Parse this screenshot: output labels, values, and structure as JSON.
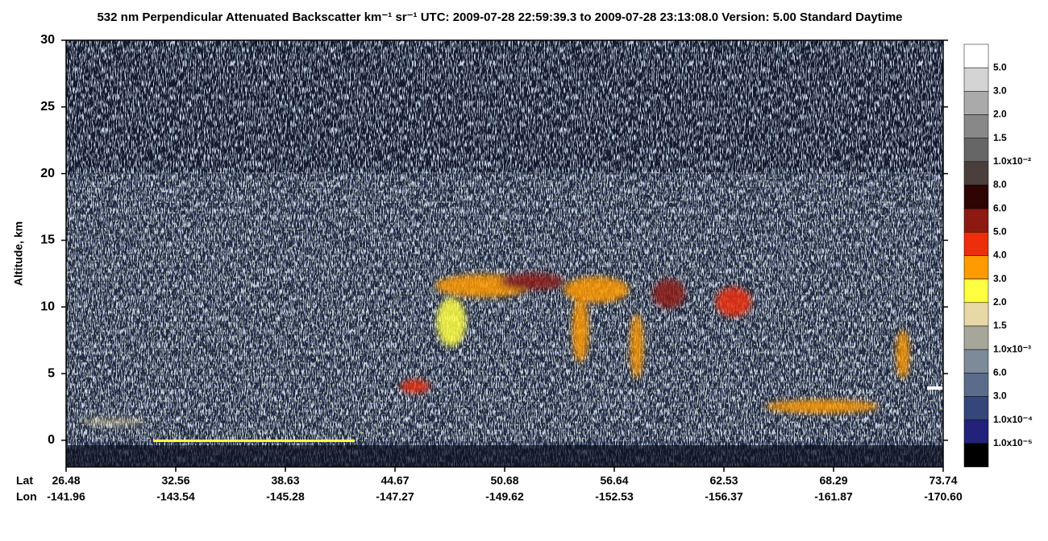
{
  "chart_data": {
    "type": "heatmap",
    "title": "532 nm Perpendicular Attenuated Backscatter km⁻¹ sr⁻¹  UTC: 2009-07-28 22:59:39.3 to 2009-07-28 23:13:08.0  Version: 5.00 Standard Daytime",
    "y_label": "Altitude, km",
    "ylim": [
      -2,
      30
    ],
    "yticks": [
      0,
      5,
      10,
      15,
      20,
      25,
      30
    ],
    "x_rows": [
      {
        "name": "Lat",
        "labels": [
          "26.48",
          "32.56",
          "38.63",
          "44.67",
          "50.68",
          "56.64",
          "62.53",
          "68.29",
          "73.74"
        ]
      },
      {
        "name": "Lon",
        "labels": [
          "-141.96",
          "-143.54",
          "-145.28",
          "-147.27",
          "-149.62",
          "-152.53",
          "-156.37",
          "-161.87",
          "-170.60"
        ]
      }
    ],
    "colorbar": {
      "colors": [
        "#ffffff",
        "#d4d4d4",
        "#aaaaaa",
        "#888888",
        "#666666",
        "#4a3f3c",
        "#2e0404",
        "#8c1a12",
        "#ec2e0c",
        "#ff9a00",
        "#ffff42",
        "#e8d8a6",
        "#a6a69a",
        "#7d8a9a",
        "#5a6c8a",
        "#34467a",
        "#22227a",
        "#000000"
      ],
      "labels": [
        "5.0",
        "3.0",
        "2.0",
        "1.5",
        "1.0x10⁻²",
        "8.0",
        "6.0",
        "5.0",
        "4.0",
        "3.0",
        "2.0",
        "1.5",
        "1.0x10⁻³",
        "6.0",
        "3.0",
        "1.0x10⁻⁴",
        "1.0x10⁻⁵"
      ]
    }
  }
}
